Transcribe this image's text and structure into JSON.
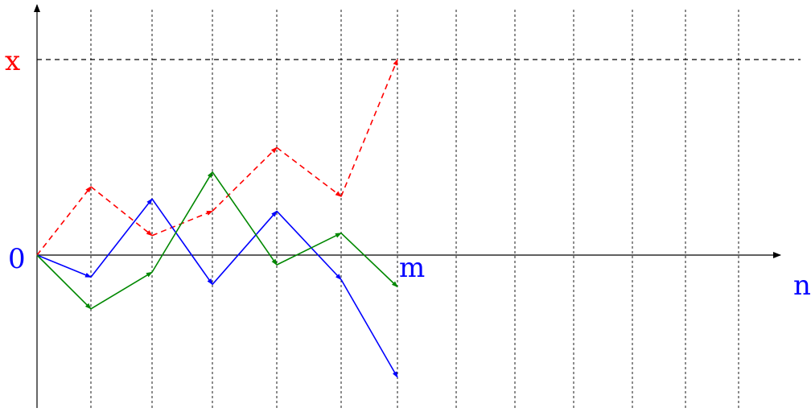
{
  "labels": {
    "x_level": "x",
    "origin": "0",
    "m_mark": "m",
    "n_axis": "n"
  },
  "colors": {
    "axis": "#000000",
    "red": "#ff0000",
    "blue": "#0000ff",
    "green": "#008800"
  },
  "diagram": {
    "time_steps": 14,
    "m_step": 6,
    "x_level_value": 8,
    "y_range": [
      -5.0,
      10.0
    ],
    "paths": [
      {
        "color_key": "red",
        "style": "dashed",
        "points": [
          [
            0,
            0
          ],
          [
            1,
            2.8
          ],
          [
            2,
            0.8
          ],
          [
            3,
            1.8
          ],
          [
            4,
            4.4
          ],
          [
            5,
            2.4
          ],
          [
            6,
            8.0
          ]
        ]
      },
      {
        "color_key": "blue",
        "style": "solid",
        "points": [
          [
            0,
            0
          ],
          [
            1,
            -0.9
          ],
          [
            2,
            2.3
          ],
          [
            3,
            -1.2
          ],
          [
            4,
            1.8
          ],
          [
            5,
            -1.0
          ],
          [
            6,
            -5.0
          ]
        ]
      },
      {
        "color_key": "green",
        "style": "solid",
        "points": [
          [
            0,
            0
          ],
          [
            1,
            -2.2
          ],
          [
            2,
            -0.7
          ],
          [
            3,
            3.4
          ],
          [
            4,
            -0.4
          ],
          [
            5,
            0.9
          ],
          [
            6,
            -1.3
          ]
        ]
      }
    ]
  }
}
